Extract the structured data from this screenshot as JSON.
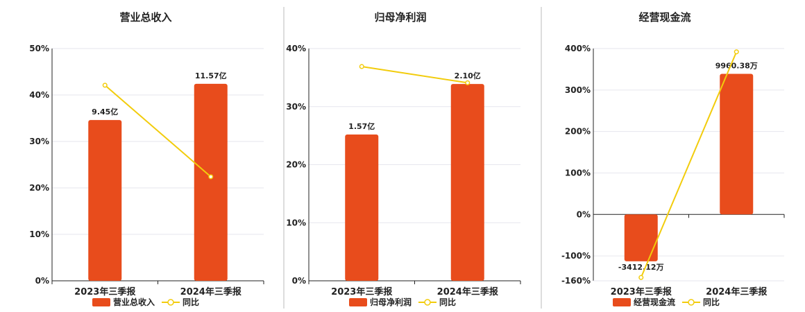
{
  "colors": {
    "bar": "#e84c1c",
    "line": "#f2cc0c",
    "grid": "#e6e6ee",
    "axis": "#222222",
    "divider": "#bbbbbb"
  },
  "chart_data": [
    {
      "type": "bar",
      "title": "营业总收入",
      "categories": [
        "2023年三季报",
        "2024年三季报"
      ],
      "ylim": [
        0,
        50
      ],
      "yticks": [
        "0%",
        "10%",
        "20%",
        "30%",
        "40%",
        "50%"
      ],
      "tick_values": [
        0,
        10,
        20,
        30,
        40,
        50
      ],
      "series": [
        {
          "name": "营业总收入",
          "kind": "bar",
          "values": [
            34.6,
            42.4
          ],
          "labels": [
            "9.45亿",
            "11.57亿"
          ]
        },
        {
          "name": "同比",
          "kind": "line",
          "values": [
            42.1,
            22.4
          ]
        }
      ],
      "legend": [
        "营业总收入",
        "同比"
      ],
      "legend_position": "bottom",
      "grid": true
    },
    {
      "type": "bar",
      "title": "归母净利润",
      "categories": [
        "2023年三季报",
        "2024年三季报"
      ],
      "ylim": [
        0,
        40
      ],
      "yticks": [
        "0%",
        "10%",
        "20%",
        "30%",
        "40%"
      ],
      "tick_values": [
        0,
        10,
        20,
        30,
        40
      ],
      "series": [
        {
          "name": "归母净利润",
          "kind": "bar",
          "values": [
            25.2,
            33.9
          ],
          "labels": [
            "1.57亿",
            "2.10亿"
          ]
        },
        {
          "name": "同比",
          "kind": "line",
          "values": [
            36.9,
            34.1
          ]
        }
      ],
      "legend": [
        "归母净利润",
        "同比"
      ],
      "legend_position": "bottom",
      "grid": true
    },
    {
      "type": "bar",
      "title": "经营现金流",
      "categories": [
        "2023年三季报",
        "2024年三季报"
      ],
      "ylim": [
        -160,
        400
      ],
      "yticks": [
        "-160%",
        "-100%",
        "0%",
        "100%",
        "200%",
        "300%",
        "400%"
      ],
      "tick_values": [
        -160,
        -100,
        0,
        100,
        200,
        300,
        400
      ],
      "series": [
        {
          "name": "经营现金流",
          "kind": "bar",
          "values": [
            -113,
            339
          ],
          "labels": [
            "-3412.12万",
            "9960.38万"
          ]
        },
        {
          "name": "同比",
          "kind": "line",
          "values": [
            -152,
            392
          ]
        }
      ],
      "legend": [
        "经营现金流",
        "同比"
      ],
      "legend_position": "bottom",
      "grid": true
    }
  ]
}
